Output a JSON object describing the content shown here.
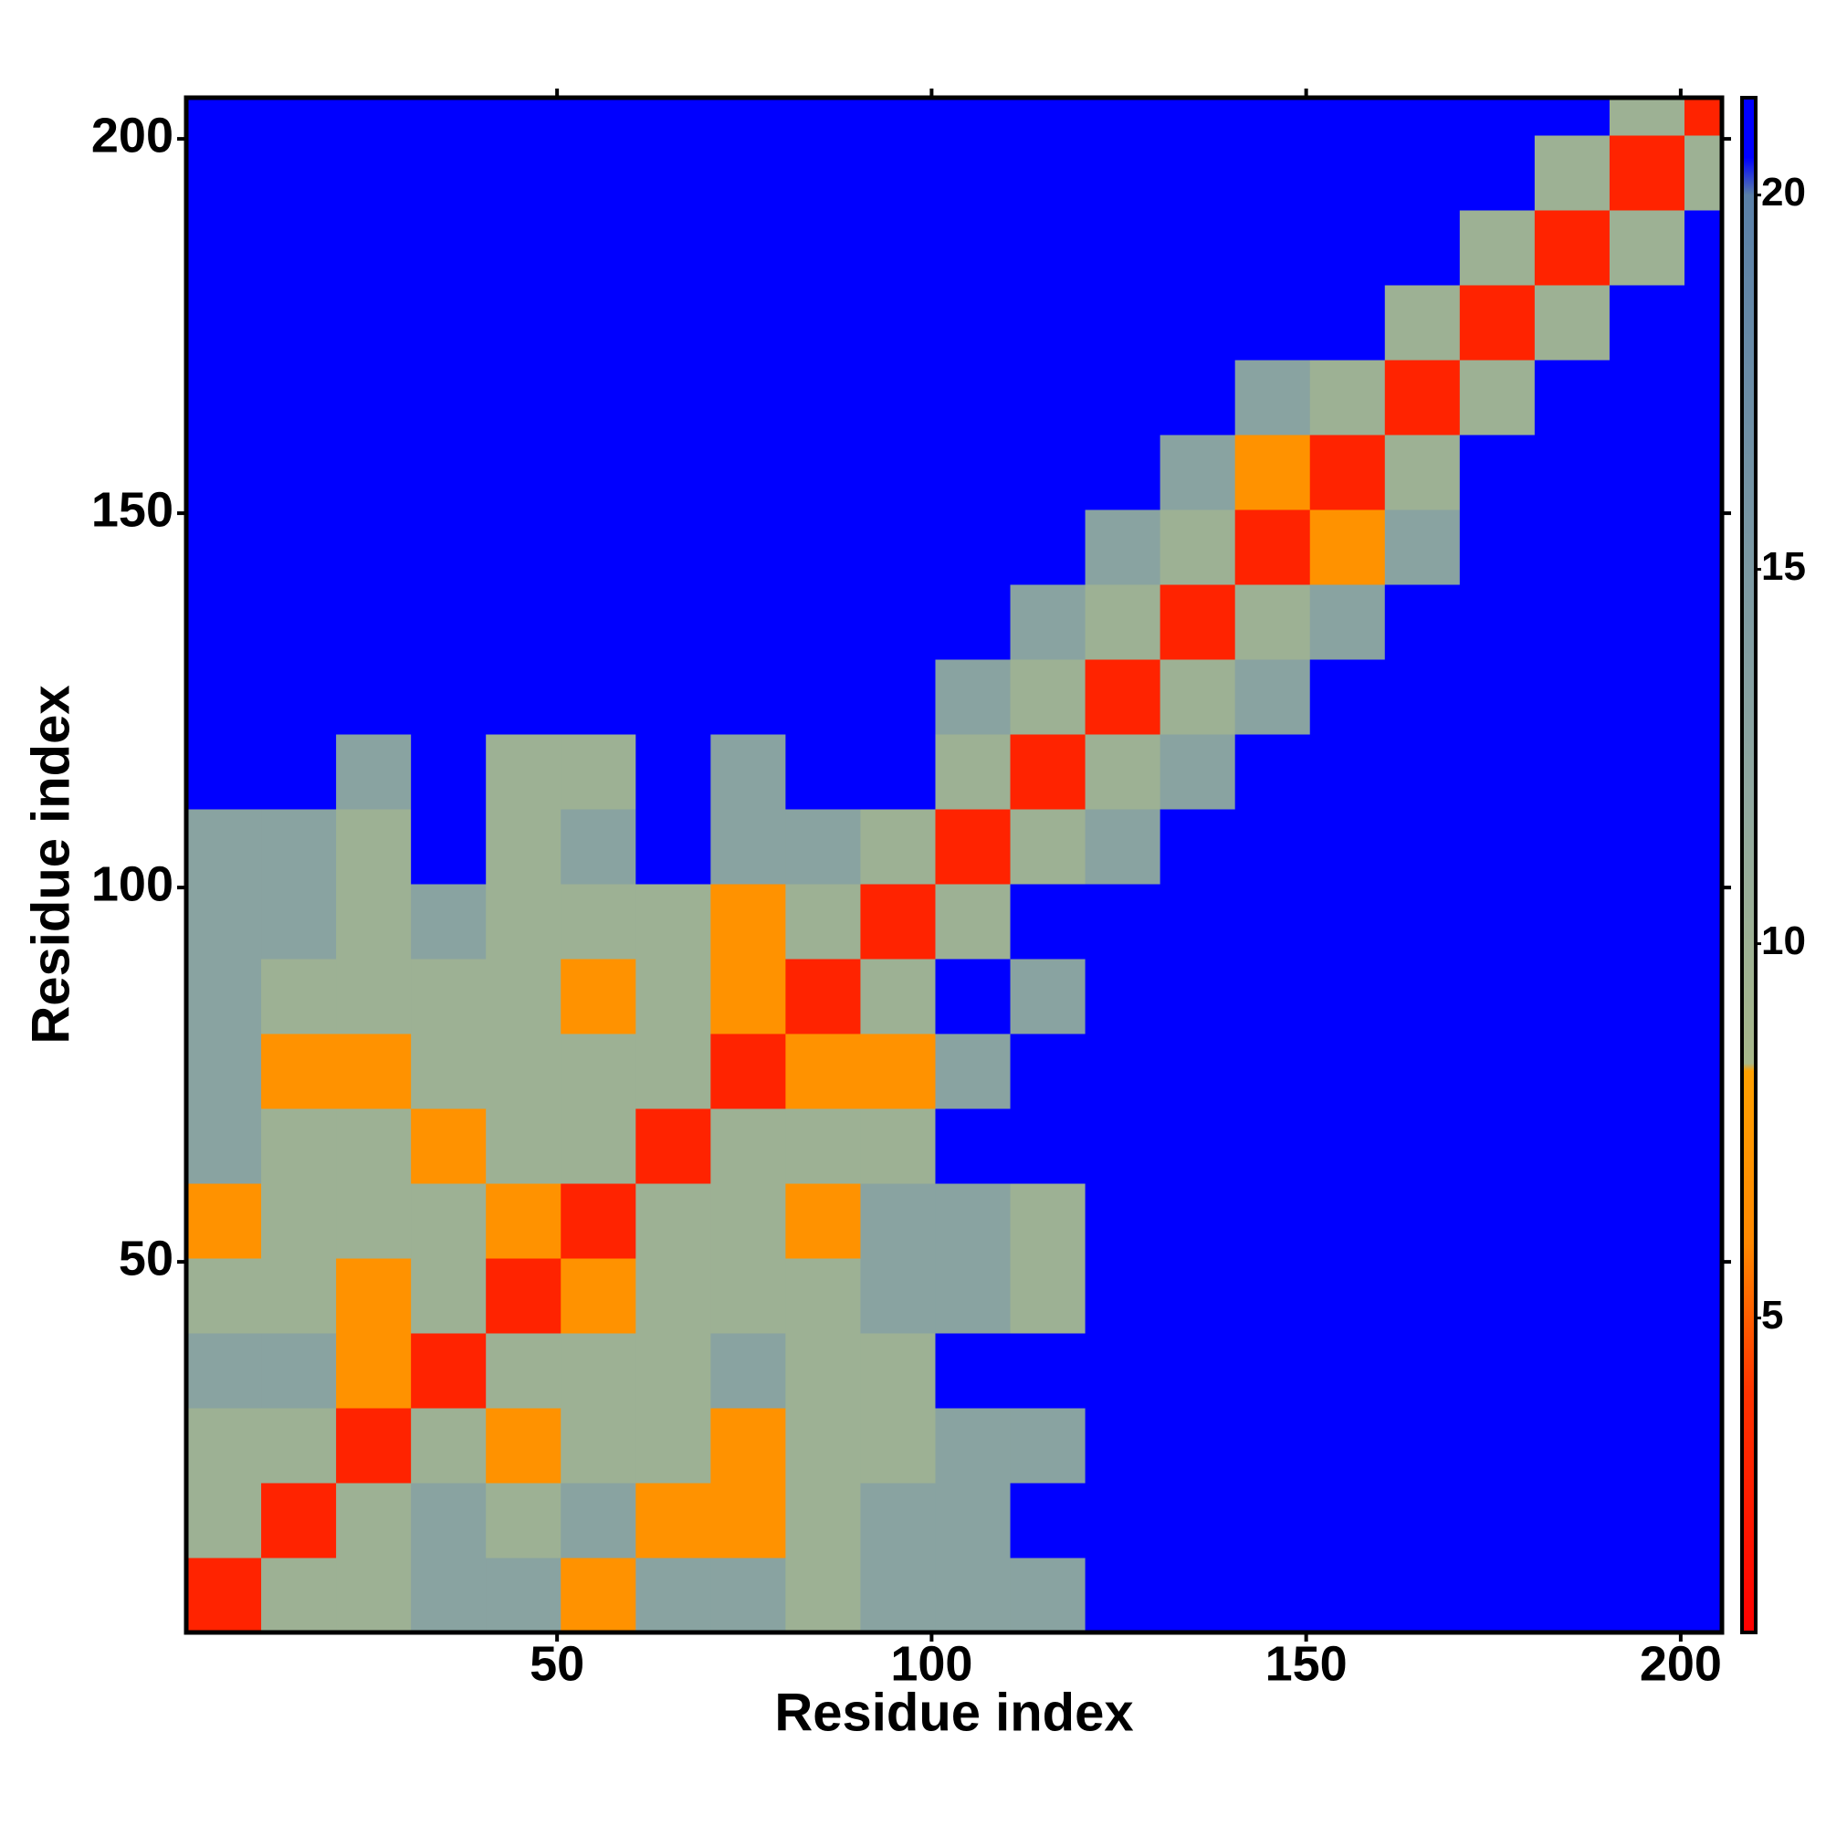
{
  "chart_data": {
    "type": "heatmap",
    "xlabel": "Residue index",
    "ylabel": "Residue index",
    "x_bins": [
      0.5,
      10.5,
      20.5,
      30.5,
      40.5,
      50.5,
      60.5,
      70.5,
      80.5,
      90.5,
      100.5,
      110.5,
      120.5,
      130.5,
      140.5,
      150.5,
      160.5,
      170.5,
      180.5,
      190.5,
      200.5,
      205.5
    ],
    "y_bins": [
      0.5,
      10.5,
      20.5,
      30.5,
      40.5,
      50.5,
      60.5,
      70.5,
      80.5,
      90.5,
      100.5,
      110.5,
      120.5,
      130.5,
      140.5,
      150.5,
      160.5,
      170.5,
      180.5,
      190.5,
      200.5,
      205.5
    ],
    "z": [
      [
        3,
        10,
        10,
        13,
        13,
        7,
        13,
        13,
        10,
        13,
        13,
        13,
        21,
        21,
        21,
        21,
        21,
        21,
        21,
        21,
        21
      ],
      [
        10,
        3,
        10,
        13,
        10,
        13,
        7,
        7,
        10,
        13,
        13,
        21,
        21,
        21,
        21,
        21,
        21,
        21,
        21,
        21,
        21
      ],
      [
        10,
        10,
        3,
        10,
        7,
        10,
        10,
        7,
        10,
        10,
        13,
        13,
        21,
        21,
        21,
        21,
        21,
        21,
        21,
        21,
        21
      ],
      [
        13,
        13,
        7,
        3,
        10,
        10,
        10,
        13,
        10,
        10,
        21,
        21,
        21,
        21,
        21,
        21,
        21,
        21,
        21,
        21,
        21
      ],
      [
        10,
        10,
        7,
        10,
        3,
        7,
        10,
        10,
        10,
        13,
        13,
        10,
        21,
        21,
        21,
        21,
        21,
        21,
        21,
        21,
        21
      ],
      [
        7,
        10,
        10,
        10,
        7,
        3,
        10,
        10,
        7,
        13,
        13,
        10,
        21,
        21,
        21,
        21,
        21,
        21,
        21,
        21,
        21
      ],
      [
        13,
        10,
        10,
        7,
        10,
        10,
        3,
        10,
        10,
        10,
        21,
        21,
        21,
        21,
        21,
        21,
        21,
        21,
        21,
        21,
        21
      ],
      [
        13,
        7,
        7,
        10,
        10,
        10,
        10,
        3,
        7,
        7,
        13,
        21,
        21,
        21,
        21,
        21,
        21,
        21,
        21,
        21,
        21
      ],
      [
        13,
        10,
        10,
        10,
        10,
        7,
        10,
        7,
        3,
        10,
        21,
        13,
        21,
        21,
        21,
        21,
        21,
        21,
        21,
        21,
        21
      ],
      [
        13,
        13,
        10,
        13,
        10,
        10,
        10,
        7,
        10,
        3,
        10,
        21,
        21,
        21,
        21,
        21,
        21,
        21,
        21,
        21,
        21
      ],
      [
        13,
        13,
        10,
        21,
        10,
        13,
        21,
        13,
        13,
        10,
        3,
        10,
        13,
        21,
        21,
        21,
        21,
        21,
        21,
        21,
        21
      ],
      [
        21,
        21,
        13,
        21,
        10,
        10,
        21,
        13,
        21,
        21,
        10,
        3,
        10,
        13,
        21,
        21,
        21,
        21,
        21,
        21,
        21
      ],
      [
        21,
        21,
        21,
        21,
        21,
        21,
        21,
        21,
        21,
        21,
        13,
        10,
        3,
        10,
        13,
        21,
        21,
        21,
        21,
        21,
        21
      ],
      [
        21,
        21,
        21,
        21,
        21,
        21,
        21,
        21,
        21,
        21,
        21,
        13,
        10,
        3,
        10,
        13,
        21,
        21,
        21,
        21,
        21
      ],
      [
        21,
        21,
        21,
        21,
        21,
        21,
        21,
        21,
        21,
        21,
        21,
        21,
        13,
        10,
        3,
        7,
        13,
        21,
        21,
        21,
        21
      ],
      [
        21,
        21,
        21,
        21,
        21,
        21,
        21,
        21,
        21,
        21,
        21,
        21,
        21,
        13,
        7,
        3,
        10,
        21,
        21,
        21,
        21
      ],
      [
        21,
        21,
        21,
        21,
        21,
        21,
        21,
        21,
        21,
        21,
        21,
        21,
        21,
        21,
        13,
        10,
        3,
        10,
        21,
        21,
        21
      ],
      [
        21,
        21,
        21,
        21,
        21,
        21,
        21,
        21,
        21,
        21,
        21,
        21,
        21,
        21,
        21,
        21,
        10,
        3,
        10,
        21,
        21
      ],
      [
        21,
        21,
        21,
        21,
        21,
        21,
        21,
        21,
        21,
        21,
        21,
        21,
        21,
        21,
        21,
        21,
        21,
        10,
        3,
        10,
        21
      ],
      [
        21,
        21,
        21,
        21,
        21,
        21,
        21,
        21,
        21,
        21,
        21,
        21,
        21,
        21,
        21,
        21,
        21,
        21,
        10,
        3,
        10
      ],
      [
        21,
        21,
        21,
        21,
        21,
        21,
        21,
        21,
        21,
        21,
        21,
        21,
        21,
        21,
        21,
        21,
        21,
        21,
        21,
        10,
        3
      ]
    ],
    "xlim": [
      0.5,
      205.5
    ],
    "ylim": [
      0.5,
      205.5
    ],
    "xticks": [
      50,
      100,
      150,
      200
    ],
    "yticks": [
      50,
      100,
      150,
      200
    ],
    "zlim": [
      0.8,
      21.3
    ],
    "zticks": [
      5,
      10,
      15,
      20
    ],
    "colorscale": [
      [
        0.8,
        "#ff0000"
      ],
      [
        4,
        "#ff3300"
      ],
      [
        6,
        "#ff8800"
      ],
      [
        8.3,
        "#ffa000"
      ],
      [
        8.4,
        "#a8b88a"
      ],
      [
        12,
        "#90a8a0"
      ],
      [
        20,
        "#5a80a8"
      ],
      [
        20.5,
        "#0000ff"
      ],
      [
        21.3,
        "#0000ff"
      ]
    ]
  }
}
